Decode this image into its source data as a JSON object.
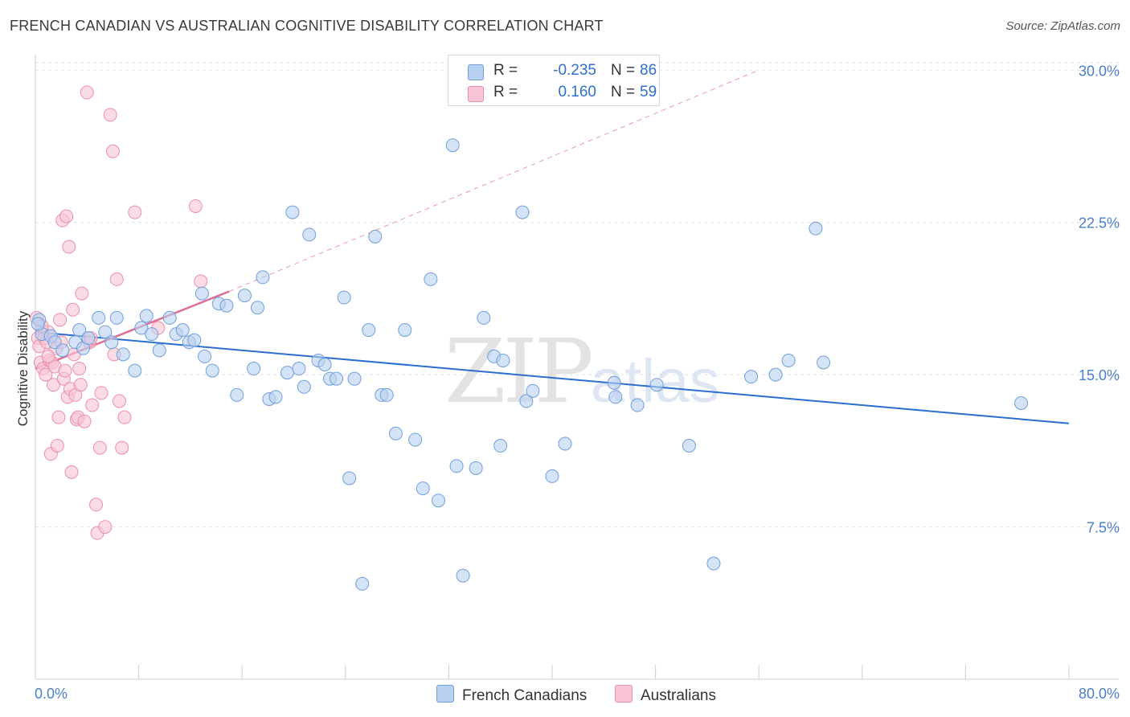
{
  "title": "FRENCH CANADIAN VS AUSTRALIAN COGNITIVE DISABILITY CORRELATION CHART",
  "source": "Source: ZipAtlas.com",
  "watermark": {
    "zip": "ZIP",
    "atlas": "atlas"
  },
  "legend": {
    "rows": [
      {
        "r_label": "R =",
        "r_value": "-0.235",
        "n_label": "N =",
        "n_value": "86"
      },
      {
        "r_label": "R =",
        "r_value": "0.160",
        "n_label": "N =",
        "n_value": "59"
      }
    ]
  },
  "bottom_legend": [
    "French Canadians",
    "Australians"
  ],
  "colors": {
    "blue_fill": "#b9d1f0",
    "blue_stroke": "#6f9fdc",
    "blue_line": "#2a6fd0",
    "pink_fill": "#f9c4d4",
    "pink_stroke": "#ea8fab",
    "pink_line": "#e06d96",
    "grid": "#e3e3e3",
    "tick_text": "#4a7fc8"
  },
  "chart_data": {
    "type": "scatter",
    "title": "FRENCH CANADIAN VS AUSTRALIAN COGNITIVE DISABILITY CORRELATION CHART",
    "xlabel": "",
    "ylabel": "Cognitive Disability",
    "xlim": [
      0,
      80
    ],
    "ylim": [
      0,
      31
    ],
    "x_tick_labels": [
      "0.0%",
      "80.0%"
    ],
    "y_ticks": [
      7.5,
      15.0,
      22.5,
      30.0
    ],
    "y_tick_labels": [
      "7.5%",
      "15.0%",
      "22.5%",
      "30.0%"
    ],
    "grid": "horizontal dashed",
    "legend_position": "top-center",
    "series": [
      {
        "name": "French Canadians",
        "color": "#b9d1f0",
        "r": -0.235,
        "n": 86,
        "trend": {
          "x": [
            0,
            80
          ],
          "y": [
            17.1,
            12.6
          ],
          "style": "solid"
        },
        "points": [
          [
            0.3,
            17.7
          ],
          [
            0.5,
            17.0
          ],
          [
            1.2,
            16.9
          ],
          [
            1.5,
            16.6
          ],
          [
            2.1,
            16.2
          ],
          [
            3.1,
            16.6
          ],
          [
            3.4,
            17.2
          ],
          [
            3.7,
            16.3
          ],
          [
            4.1,
            16.8
          ],
          [
            4.9,
            17.8
          ],
          [
            5.4,
            17.1
          ],
          [
            5.9,
            16.6
          ],
          [
            6.3,
            17.8
          ],
          [
            6.8,
            16.0
          ],
          [
            7.7,
            15.2
          ],
          [
            8.6,
            17.9
          ],
          [
            8.2,
            17.3
          ],
          [
            9.0,
            17.0
          ],
          [
            9.6,
            16.2
          ],
          [
            10.4,
            17.8
          ],
          [
            10.9,
            17.0
          ],
          [
            11.4,
            17.2
          ],
          [
            11.9,
            16.6
          ],
          [
            12.3,
            16.7
          ],
          [
            13.1,
            15.9
          ],
          [
            13.7,
            15.2
          ],
          [
            12.9,
            19.0
          ],
          [
            14.2,
            18.5
          ],
          [
            14.8,
            18.4
          ],
          [
            15.6,
            14.0
          ],
          [
            16.2,
            18.9
          ],
          [
            16.9,
            15.3
          ],
          [
            17.2,
            18.3
          ],
          [
            17.6,
            19.8
          ],
          [
            18.1,
            13.8
          ],
          [
            18.6,
            13.9
          ],
          [
            19.5,
            15.1
          ],
          [
            19.9,
            23.0
          ],
          [
            20.4,
            15.3
          ],
          [
            20.8,
            14.4
          ],
          [
            21.2,
            21.9
          ],
          [
            21.9,
            15.7
          ],
          [
            22.4,
            15.5
          ],
          [
            22.8,
            14.8
          ],
          [
            23.3,
            14.8
          ],
          [
            23.9,
            18.8
          ],
          [
            24.3,
            9.9
          ],
          [
            24.7,
            14.8
          ],
          [
            25.3,
            4.7
          ],
          [
            25.8,
            17.2
          ],
          [
            26.3,
            21.8
          ],
          [
            26.8,
            14.0
          ],
          [
            27.2,
            14.0
          ],
          [
            27.9,
            12.1
          ],
          [
            28.6,
            17.2
          ],
          [
            29.4,
            11.8
          ],
          [
            30.0,
            9.4
          ],
          [
            30.6,
            19.7
          ],
          [
            31.2,
            8.8
          ],
          [
            32.3,
            26.3
          ],
          [
            32.6,
            10.5
          ],
          [
            33.1,
            5.1
          ],
          [
            34.1,
            10.4
          ],
          [
            34.7,
            17.8
          ],
          [
            35.5,
            15.9
          ],
          [
            36.0,
            11.5
          ],
          [
            36.2,
            15.7
          ],
          [
            37.3,
            29.5
          ],
          [
            37.7,
            23.0
          ],
          [
            38.0,
            13.7
          ],
          [
            38.5,
            14.2
          ],
          [
            40.0,
            10.0
          ],
          [
            41.0,
            11.6
          ],
          [
            44.8,
            14.6
          ],
          [
            44.9,
            13.9
          ],
          [
            46.6,
            13.5
          ],
          [
            48.1,
            14.5
          ],
          [
            50.6,
            11.5
          ],
          [
            52.5,
            5.7
          ],
          [
            55.4,
            14.9
          ],
          [
            57.3,
            15.0
          ],
          [
            58.3,
            15.7
          ],
          [
            60.4,
            22.2
          ],
          [
            61.0,
            15.6
          ],
          [
            76.3,
            13.6
          ],
          [
            0.2,
            17.5
          ]
        ]
      },
      {
        "name": "Australians",
        "color": "#f9c4d4",
        "r": 0.16,
        "n": 59,
        "trend": {
          "x": [
            0,
            15
          ],
          "y": [
            15.3,
            19.1
          ],
          "style": "solid"
        },
        "trend_extension": {
          "x": [
            15,
            56
          ],
          "y": [
            19.1,
            30.0
          ],
          "style": "dashed"
        },
        "points": [
          [
            0.1,
            17.8
          ],
          [
            0.2,
            16.8
          ],
          [
            0.3,
            16.4
          ],
          [
            0.4,
            15.6
          ],
          [
            0.5,
            17.2
          ],
          [
            0.6,
            15.3
          ],
          [
            0.7,
            16.8
          ],
          [
            0.8,
            15.0
          ],
          [
            0.9,
            16.6
          ],
          [
            1.0,
            17.1
          ],
          [
            1.1,
            15.7
          ],
          [
            1.2,
            11.1
          ],
          [
            1.3,
            15.6
          ],
          [
            1.4,
            14.5
          ],
          [
            1.5,
            15.4
          ],
          [
            1.6,
            16.3
          ],
          [
            1.7,
            11.5
          ],
          [
            1.8,
            12.9
          ],
          [
            1.9,
            17.7
          ],
          [
            2.0,
            16.6
          ],
          [
            2.1,
            22.6
          ],
          [
            2.2,
            14.8
          ],
          [
            2.3,
            15.2
          ],
          [
            2.4,
            22.8
          ],
          [
            2.5,
            13.9
          ],
          [
            2.6,
            21.3
          ],
          [
            2.7,
            14.3
          ],
          [
            2.8,
            10.2
          ],
          [
            2.9,
            18.2
          ],
          [
            3.0,
            16.0
          ],
          [
            3.1,
            14.0
          ],
          [
            3.2,
            12.8
          ],
          [
            3.3,
            12.9
          ],
          [
            3.4,
            15.3
          ],
          [
            3.5,
            14.5
          ],
          [
            3.6,
            19.0
          ],
          [
            3.8,
            12.7
          ],
          [
            4.0,
            28.9
          ],
          [
            4.2,
            16.6
          ],
          [
            4.4,
            13.5
          ],
          [
            4.7,
            8.6
          ],
          [
            4.8,
            7.2
          ],
          [
            5.0,
            11.4
          ],
          [
            5.1,
            14.1
          ],
          [
            5.4,
            7.5
          ],
          [
            5.8,
            27.8
          ],
          [
            6.0,
            26.0
          ],
          [
            6.1,
            16.0
          ],
          [
            6.3,
            19.7
          ],
          [
            6.5,
            13.7
          ],
          [
            6.7,
            11.4
          ],
          [
            6.9,
            12.9
          ],
          [
            7.7,
            23.0
          ],
          [
            9.5,
            17.3
          ],
          [
            12.4,
            23.3
          ],
          [
            12.8,
            19.6
          ],
          [
            4.3,
            16.8
          ],
          [
            0.5,
            17.4
          ],
          [
            1.0,
            15.9
          ]
        ]
      }
    ]
  }
}
